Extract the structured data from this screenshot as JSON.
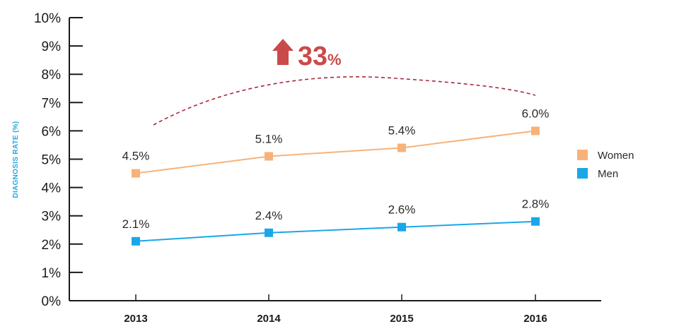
{
  "chart_data": {
    "type": "line",
    "title": "",
    "xlabel": "",
    "ylabel": "DIAGNOSIS RATE (%)",
    "categories": [
      "2013",
      "2014",
      "2015",
      "2016"
    ],
    "ylim": [
      0,
      10
    ],
    "y_ticks": [
      "0%",
      "1%",
      "2%",
      "3%",
      "4%",
      "5%",
      "6%",
      "7%",
      "8%",
      "9%",
      "10%"
    ],
    "grid": false,
    "legend_position": "right",
    "series": [
      {
        "name": "Women",
        "color": "#f7b27a",
        "values": [
          4.5,
          5.1,
          5.4,
          6.0
        ],
        "labels": [
          "4.5%",
          "5.1%",
          "5.4%",
          "6.0%"
        ]
      },
      {
        "name": "Men",
        "color": "#1aa7e8",
        "values": [
          2.1,
          2.4,
          2.6,
          2.8
        ],
        "labels": [
          "2.1%",
          "2.4%",
          "2.6%",
          "2.8%"
        ]
      }
    ],
    "annotation": {
      "text": "33",
      "suffix": "%",
      "icon": "arrow-up-icon",
      "color": "#c94a48",
      "trend_line_style": "dashed",
      "trend_line_color": "#a8283e"
    }
  }
}
